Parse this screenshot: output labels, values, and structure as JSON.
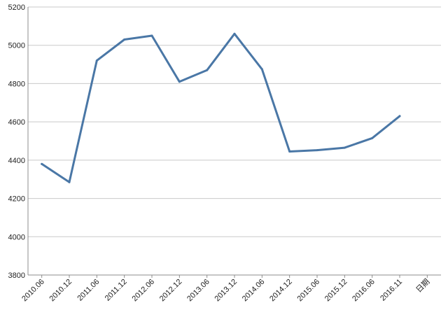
{
  "chart_data": {
    "type": "line",
    "title": "",
    "xlabel": "",
    "ylabel": "",
    "categories": [
      "2010.06",
      "2010.12",
      "2011.06",
      "2011.12",
      "2012.06",
      "2012.12",
      "2013.06",
      "2013.12",
      "2014.06",
      "2014.12",
      "2015.06",
      "2015.12",
      "2016.06",
      "2016.11",
      "日期"
    ],
    "series": [
      {
        "values": [
          4380,
          4285,
          4920,
          5030,
          5050,
          4810,
          4870,
          5060,
          4875,
          4445,
          4452,
          4465,
          4515,
          4630,
          null
        ]
      }
    ],
    "ylim": [
      3800,
      5200
    ],
    "yticks": [
      3800,
      4000,
      4200,
      4400,
      4600,
      4800,
      5000,
      5200
    ],
    "grid": true,
    "legend": "none",
    "colors": {
      "line": "#4a77a6",
      "grid": "#c9c9c9",
      "axis": "#8c8c8c"
    }
  }
}
